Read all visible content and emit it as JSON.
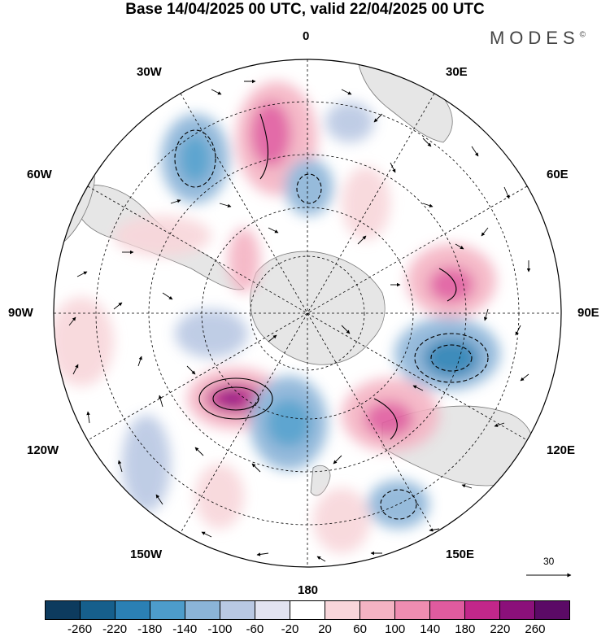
{
  "title": "Base 14/04/2025 00 UTC, valid 22/04/2025 00 UTC",
  "brand": "MODES",
  "brand_mark": "©",
  "longitude_labels": {
    "n0": "0",
    "n30e": "30E",
    "n60e": "60E",
    "n90e": "90E",
    "n120e": "120E",
    "n150e": "150E",
    "n180": "180",
    "n150w": "150W",
    "n120w": "120W",
    "n90w": "90W",
    "n60w": "60W",
    "n30w": "30W"
  },
  "vector_scale": "30",
  "colorbar": {
    "ticks": [
      "-260",
      "-220",
      "-180",
      "-140",
      "-100",
      "-60",
      "-20",
      "20",
      "60",
      "100",
      "140",
      "180",
      "220",
      "260"
    ],
    "colors": [
      "#0d3b5e",
      "#165f8c",
      "#2b80b4",
      "#4d9ccb",
      "#8bb4d8",
      "#b9c8e3",
      "#e2e3f1",
      "#ffffff",
      "#f8d6da",
      "#f4b3c3",
      "#ef8db1",
      "#e05b9f",
      "#c2278a",
      "#8b107a",
      "#5b0a66"
    ]
  },
  "colors": {
    "land": "#e8e8e8",
    "coast": "#777777"
  }
}
